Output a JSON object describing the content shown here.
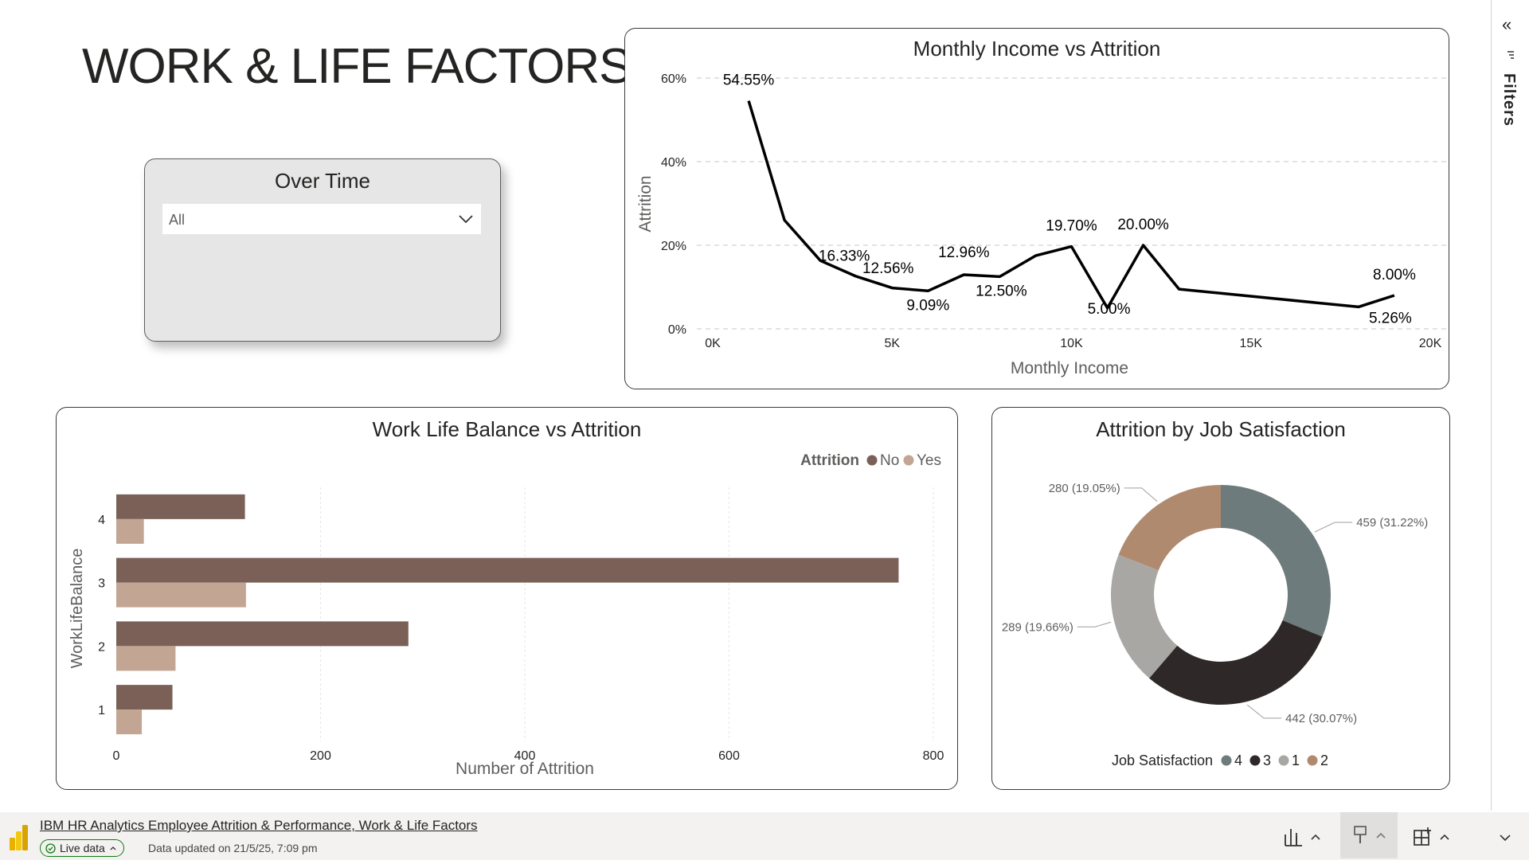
{
  "page": {
    "title": "WORK & LIFE FACTORS"
  },
  "slicer": {
    "title": "Over Time",
    "value": "All"
  },
  "income_chart": {
    "title": "Monthly Income vs Attrition"
  },
  "wlb_chart": {
    "title": "Work Life Balance vs Attrition"
  },
  "donut_chart": {
    "title": "Attrition by Job Satisfaction"
  },
  "chart_data": [
    {
      "type": "line",
      "title": "Monthly Income vs Attrition",
      "xlabel": "Monthly Income",
      "ylabel": "Attrition",
      "xlim": [
        0,
        20000
      ],
      "ylim": [
        0,
        60
      ],
      "x_ticks": [
        "0K",
        "5K",
        "10K",
        "15K",
        "20K"
      ],
      "y_ticks": [
        "0%",
        "20%",
        "40%",
        "60%"
      ],
      "grid": true,
      "x": [
        1000,
        2000,
        3000,
        4000,
        5000,
        6000,
        7000,
        8000,
        9000,
        10000,
        11000,
        12000,
        13000,
        18000,
        19000
      ],
      "y": [
        54.55,
        26.0,
        16.33,
        12.56,
        9.8,
        9.09,
        12.96,
        12.5,
        17.5,
        19.7,
        5.0,
        20.0,
        9.5,
        5.26,
        8.0
      ],
      "point_labels": [
        "54.55%",
        "",
        "16.33%",
        "12.56%",
        "",
        "9.09%",
        "12.96%",
        "12.50%",
        "",
        "19.70%",
        "5.00%",
        "20.00%",
        "",
        "5.26%",
        "8.00%"
      ]
    },
    {
      "type": "bar",
      "orientation": "horizontal",
      "title": "Work Life Balance vs Attrition",
      "xlabel": "Number of Attrition",
      "ylabel": "WorkLifeBalance",
      "xlim": [
        0,
        800
      ],
      "x_ticks": [
        "0",
        "200",
        "400",
        "600",
        "800"
      ],
      "categories": [
        "4",
        "3",
        "2",
        "1"
      ],
      "legend_title": "Attrition",
      "legend_position": "top-right",
      "series": [
        {
          "name": "No",
          "color": "#7b6058",
          "values": [
            126,
            766,
            286,
            55
          ]
        },
        {
          "name": "Yes",
          "color": "#c2a592",
          "values": [
            27,
            127,
            58,
            25
          ]
        }
      ]
    },
    {
      "type": "pie",
      "style": "donut",
      "title": "Attrition by Job Satisfaction",
      "legend_title": "Job Satisfaction",
      "legend_position": "bottom",
      "categories": [
        "4",
        "3",
        "1",
        "2"
      ],
      "values": [
        459,
        442,
        289,
        280
      ],
      "percents": [
        "31.22%",
        "30.07%",
        "19.66%",
        "19.05%"
      ],
      "colors": [
        "#6d7b7c",
        "#2e2928",
        "#a9a7a3",
        "#b08a6f"
      ]
    }
  ],
  "filters": {
    "label": "Filters"
  },
  "bottom_bar": {
    "report_name": "IBM HR Analytics Employee Attrition & Performance, Work & Life Factors",
    "live_label": "Live data",
    "data_updated": "Data updated on 21/5/25, 7:09 pm"
  }
}
